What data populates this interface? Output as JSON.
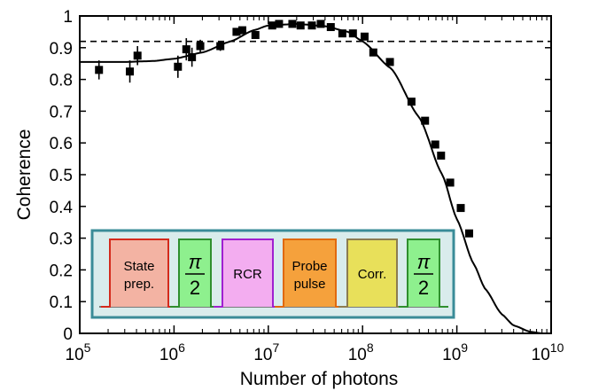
{
  "chart_data": {
    "type": "scatter",
    "xlabel": "Number of photons",
    "ylabel": "Coherence",
    "x_scale": "log",
    "xlim": [
      100000,
      10000000000
    ],
    "ylim": [
      0,
      1
    ],
    "x_ticks": [
      {
        "value": 100000,
        "base": "10",
        "exp": "5"
      },
      {
        "value": 1000000,
        "base": "10",
        "exp": "6"
      },
      {
        "value": 10000000,
        "base": "10",
        "exp": "7"
      },
      {
        "value": 100000000,
        "base": "10",
        "exp": "8"
      },
      {
        "value": 1000000000,
        "base": "10",
        "exp": "9"
      },
      {
        "value": 10000000000,
        "base": "10",
        "exp": "10"
      }
    ],
    "y_ticks": [
      {
        "value": 0,
        "label": "0"
      },
      {
        "value": 0.1,
        "label": "0.1"
      },
      {
        "value": 0.2,
        "label": "0.2"
      },
      {
        "value": 0.3,
        "label": "0.3"
      },
      {
        "value": 0.4,
        "label": "0.4"
      },
      {
        "value": 0.5,
        "label": "0.5"
      },
      {
        "value": 0.6,
        "label": "0.6"
      },
      {
        "value": 0.7,
        "label": "0.7"
      },
      {
        "value": 0.8,
        "label": "0.8"
      },
      {
        "value": 0.9,
        "label": "0.9"
      },
      {
        "value": 1,
        "label": "1"
      }
    ],
    "grid": false,
    "reference_line": {
      "y": 0.92,
      "style": "dashed"
    },
    "data_points": [
      {
        "x": 160000,
        "y": 0.83,
        "err": 0.03
      },
      {
        "x": 340000,
        "y": 0.825,
        "err": 0.035
      },
      {
        "x": 410000,
        "y": 0.875,
        "err": 0.03
      },
      {
        "x": 1100000,
        "y": 0.84,
        "err": 0.035
      },
      {
        "x": 1350000,
        "y": 0.895,
        "err": 0.035
      },
      {
        "x": 1550000,
        "y": 0.87,
        "err": 0.03
      },
      {
        "x": 1900000,
        "y": 0.905,
        "err": 0.02
      },
      {
        "x": 3100000,
        "y": 0.905,
        "err": 0.015
      },
      {
        "x": 4600000,
        "y": 0.95,
        "err": 0.012
      },
      {
        "x": 5300000,
        "y": 0.955,
        "err": 0.01
      },
      {
        "x": 7300000,
        "y": 0.94,
        "err": 0.01
      },
      {
        "x": 11000000,
        "y": 0.97,
        "err": 0.01
      },
      {
        "x": 13000000,
        "y": 0.975,
        "err": 0.01
      },
      {
        "x": 18000000,
        "y": 0.975,
        "err": 0.008
      },
      {
        "x": 22000000,
        "y": 0.97,
        "err": 0.008
      },
      {
        "x": 29000000,
        "y": 0.97,
        "err": 0.008
      },
      {
        "x": 36000000,
        "y": 0.975,
        "err": 0.008
      },
      {
        "x": 46000000,
        "y": 0.965,
        "err": 0.006
      },
      {
        "x": 61000000,
        "y": 0.945,
        "err": 0.006
      },
      {
        "x": 79000000,
        "y": 0.945,
        "err": 0.006
      },
      {
        "x": 105000000,
        "y": 0.935,
        "err": 0.006
      },
      {
        "x": 130000000,
        "y": 0.885,
        "err": 0.006
      },
      {
        "x": 195000000,
        "y": 0.855,
        "err": 0.006
      },
      {
        "x": 330000000,
        "y": 0.73,
        "err": 0.006
      },
      {
        "x": 460000000,
        "y": 0.67,
        "err": 0.006
      },
      {
        "x": 590000000,
        "y": 0.595,
        "err": 0.006
      },
      {
        "x": 680000000,
        "y": 0.56,
        "err": 0.006
      },
      {
        "x": 850000000,
        "y": 0.475,
        "err": 0.006
      },
      {
        "x": 1100000000,
        "y": 0.395,
        "err": 0.006
      },
      {
        "x": 1350000000,
        "y": 0.315,
        "err": 0.006
      }
    ],
    "fit_curve": [
      [
        100000,
        0.855
      ],
      [
        300000,
        0.855
      ],
      [
        600000,
        0.858
      ],
      [
        1000000,
        0.865
      ],
      [
        2000000,
        0.885
      ],
      [
        4000000,
        0.92
      ],
      [
        7000000,
        0.955
      ],
      [
        10000000,
        0.97
      ],
      [
        20000000,
        0.975
      ],
      [
        40000000,
        0.968
      ],
      [
        70000000,
        0.95
      ],
      [
        100000000,
        0.92
      ],
      [
        200000000,
        0.835
      ],
      [
        400000000,
        0.68
      ],
      [
        700000000,
        0.5
      ],
      [
        1000000000,
        0.36
      ],
      [
        1500000000,
        0.22
      ],
      [
        2000000000,
        0.14
      ],
      [
        3000000000,
        0.06
      ],
      [
        4000000000,
        0.025
      ],
      [
        6000000000,
        0.005
      ],
      [
        8000000000,
        0.0
      ],
      [
        10000000000,
        0.0
      ]
    ],
    "inset_sequence": {
      "blocks": [
        {
          "lines": [
            "State",
            "prep."
          ],
          "fill": "#f3b3a3",
          "stroke": "#d42a1c"
        },
        {
          "lines": [
            "π",
            "2"
          ],
          "fraction": true,
          "fill": "#8ef08e",
          "stroke": "#2f8f2f"
        },
        {
          "lines": [
            "RCR"
          ],
          "fill": "#f3adf0",
          "stroke": "#a020d0"
        },
        {
          "lines": [
            "Probe",
            "pulse"
          ],
          "fill": "#f5a13c",
          "stroke": "#e06a10"
        },
        {
          "lines": [
            "Corr."
          ],
          "fill": "#e8e05a",
          "stroke": "#8c7c50"
        },
        {
          "lines": [
            "π",
            "2"
          ],
          "fraction": true,
          "fill": "#8ef08e",
          "stroke": "#2f8f2f"
        }
      ],
      "box_fill": "#d9ecec",
      "box_stroke": "#3a8c98"
    }
  }
}
